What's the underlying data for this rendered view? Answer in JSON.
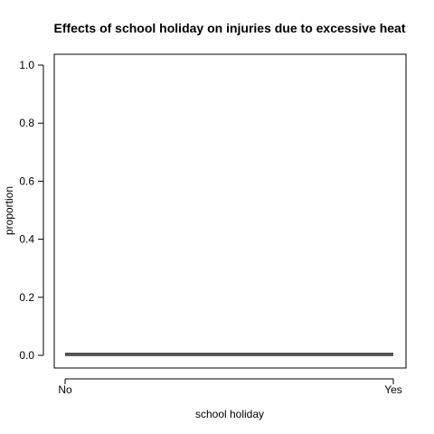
{
  "chart_data": {
    "type": "line",
    "title": "Effects of school holiday on injuries due to excessive heat",
    "xlabel": "school holiday",
    "ylabel": "proportion",
    "categories": [
      "No",
      "Yes"
    ],
    "ylim": [
      0,
      1
    ],
    "yticks": [
      0.0,
      0.2,
      0.4,
      0.6,
      0.8,
      1.0
    ],
    "ytick_labels": [
      "0.0",
      "0.2",
      "0.4",
      "0.6",
      "0.8",
      "1.0"
    ],
    "grid": false,
    "series": [
      {
        "values": [
          0.0,
          0.0
        ]
      },
      {
        "values": [
          0.006,
          0.006
        ]
      }
    ]
  }
}
